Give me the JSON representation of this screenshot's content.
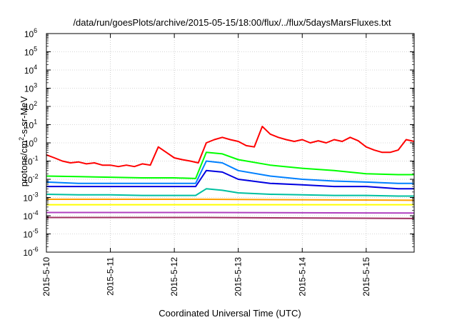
{
  "chart_data": {
    "type": "line",
    "title": "/data/run/goesPlots/archive/2015-05-15/18:00/flux/../flux/5daysMarsFluxes.txt",
    "xlabel": "Coordinated Universal Time (UTC)",
    "ylabel": "protons/cm²-s-sr-MeV",
    "ylabel_parts": [
      "protons/cm",
      "2",
      "-s-sr-MeV"
    ],
    "x_range": [
      "2015-05-10T00:00",
      "2015-05-15T18:00"
    ],
    "x_ticks": [
      "2015-5-10",
      "2015-5-11",
      "2015-5-12",
      "2015-5-13",
      "2015-5-14",
      "2015-5-15"
    ],
    "y_scale": "log",
    "y_range": [
      1e-06,
      1000000.0
    ],
    "y_ticks": [
      {
        "value": 1e-06,
        "base": "10",
        "exp": "-6"
      },
      {
        "value": 1e-05,
        "base": "10",
        "exp": "-5"
      },
      {
        "value": 0.0001,
        "base": "10",
        "exp": "-4"
      },
      {
        "value": 0.001,
        "base": "10",
        "exp": "-3"
      },
      {
        "value": 0.01,
        "base": "10",
        "exp": "-2"
      },
      {
        "value": 0.1,
        "base": "10",
        "exp": "-1"
      },
      {
        "value": 1.0,
        "base": "10",
        "exp": "0"
      },
      {
        "value": 10.0,
        "base": "10",
        "exp": "1"
      },
      {
        "value": 100.0,
        "base": "10",
        "exp": "2"
      },
      {
        "value": 1000.0,
        "base": "10",
        "exp": "3"
      },
      {
        "value": 10000.0,
        "base": "10",
        "exp": "4"
      },
      {
        "value": 100000.0,
        "base": "10",
        "exp": "5"
      },
      {
        "value": 1000000.0,
        "base": "10",
        "exp": "6"
      }
    ],
    "grid": true,
    "series": [
      {
        "color": "#ff0000",
        "x": [
          "2015-05-10T00:00",
          "2015-05-10T03:00",
          "2015-05-10T06:00",
          "2015-05-10T09:00",
          "2015-05-10T12:00",
          "2015-05-10T15:00",
          "2015-05-10T18:00",
          "2015-05-10T21:00",
          "2015-05-11T00:00",
          "2015-05-11T03:00",
          "2015-05-11T06:00",
          "2015-05-11T09:00",
          "2015-05-11T12:00",
          "2015-05-11T15:00",
          "2015-05-11T18:00",
          "2015-05-11T21:00",
          "2015-05-12T00:00",
          "2015-05-12T03:00",
          "2015-05-12T06:00",
          "2015-05-12T09:00",
          "2015-05-12T12:00",
          "2015-05-12T15:00",
          "2015-05-12T18:00",
          "2015-05-12T21:00",
          "2015-05-13T00:00",
          "2015-05-13T03:00",
          "2015-05-13T06:00",
          "2015-05-13T09:00",
          "2015-05-13T12:00",
          "2015-05-13T15:00",
          "2015-05-13T18:00",
          "2015-05-13T21:00",
          "2015-05-14T00:00",
          "2015-05-14T03:00",
          "2015-05-14T06:00",
          "2015-05-14T09:00",
          "2015-05-14T12:00",
          "2015-05-14T15:00",
          "2015-05-14T18:00",
          "2015-05-14T21:00",
          "2015-05-15T00:00",
          "2015-05-15T03:00",
          "2015-05-15T06:00",
          "2015-05-15T09:00",
          "2015-05-15T12:00",
          "2015-05-15T15:00",
          "2015-05-15T18:00"
        ],
        "y": [
          0.22,
          0.15,
          0.1,
          0.08,
          0.09,
          0.07,
          0.08,
          0.06,
          0.06,
          0.05,
          0.06,
          0.05,
          0.07,
          0.06,
          0.6,
          0.3,
          0.15,
          0.12,
          0.1,
          0.08,
          1.0,
          1.5,
          2.0,
          1.5,
          1.2,
          0.7,
          0.6,
          8.0,
          3.0,
          2.0,
          1.5,
          1.2,
          1.5,
          1.0,
          1.3,
          1.0,
          1.5,
          1.2,
          2.0,
          1.3,
          0.6,
          0.4,
          0.3,
          0.3,
          0.4,
          1.5,
          1.2
        ]
      },
      {
        "color": "#00ff00",
        "x": [
          "2015-05-10T00:00",
          "2015-05-10T12:00",
          "2015-05-11T00:00",
          "2015-05-11T12:00",
          "2015-05-12T00:00",
          "2015-05-12T08:00",
          "2015-05-12T12:00",
          "2015-05-12T18:00",
          "2015-05-13T00:00",
          "2015-05-13T12:00",
          "2015-05-14T00:00",
          "2015-05-14T12:00",
          "2015-05-15T00:00",
          "2015-05-15T12:00",
          "2015-05-15T18:00"
        ],
        "y": [
          0.015,
          0.014,
          0.013,
          0.012,
          0.012,
          0.011,
          0.3,
          0.25,
          0.12,
          0.06,
          0.04,
          0.03,
          0.02,
          0.018,
          0.018
        ]
      },
      {
        "color": "#0080ff",
        "x": [
          "2015-05-10T00:00",
          "2015-05-10T12:00",
          "2015-05-11T00:00",
          "2015-05-11T12:00",
          "2015-05-12T00:00",
          "2015-05-12T08:00",
          "2015-05-12T12:00",
          "2015-05-12T18:00",
          "2015-05-13T00:00",
          "2015-05-13T12:00",
          "2015-05-14T00:00",
          "2015-05-14T12:00",
          "2015-05-15T00:00",
          "2015-05-15T12:00",
          "2015-05-15T18:00"
        ],
        "y": [
          0.007,
          0.006,
          0.006,
          0.006,
          0.006,
          0.006,
          0.1,
          0.08,
          0.03,
          0.015,
          0.01,
          0.008,
          0.007,
          0.006,
          0.006
        ]
      },
      {
        "color": "#0000e0",
        "x": [
          "2015-05-10T00:00",
          "2015-05-10T12:00",
          "2015-05-11T00:00",
          "2015-05-11T12:00",
          "2015-05-12T00:00",
          "2015-05-12T08:00",
          "2015-05-12T12:00",
          "2015-05-12T18:00",
          "2015-05-13T00:00",
          "2015-05-13T12:00",
          "2015-05-14T00:00",
          "2015-05-14T12:00",
          "2015-05-15T00:00",
          "2015-05-15T12:00",
          "2015-05-15T18:00"
        ],
        "y": [
          0.004,
          0.004,
          0.004,
          0.004,
          0.004,
          0.004,
          0.03,
          0.025,
          0.01,
          0.006,
          0.005,
          0.004,
          0.004,
          0.003,
          0.003
        ]
      },
      {
        "color": "#00c0a0",
        "x": [
          "2015-05-10T00:00",
          "2015-05-10T12:00",
          "2015-05-11T00:00",
          "2015-05-11T12:00",
          "2015-05-12T00:00",
          "2015-05-12T08:00",
          "2015-05-12T12:00",
          "2015-05-12T18:00",
          "2015-05-13T00:00",
          "2015-05-13T12:00",
          "2015-05-14T00:00",
          "2015-05-14T12:00",
          "2015-05-15T00:00",
          "2015-05-15T12:00",
          "2015-05-15T18:00"
        ],
        "y": [
          0.0015,
          0.0014,
          0.0014,
          0.0013,
          0.0013,
          0.0013,
          0.003,
          0.0025,
          0.0018,
          0.0015,
          0.0014,
          0.0013,
          0.0013,
          0.0012,
          0.0012
        ]
      },
      {
        "color": "#ffa000",
        "x": [
          "2015-05-10T00:00",
          "2015-05-12T12:00",
          "2015-05-15T18:00"
        ],
        "y": [
          0.0008,
          0.0008,
          0.0007
        ]
      },
      {
        "color": "#ffff00",
        "x": [
          "2015-05-10T00:00",
          "2015-05-12T12:00",
          "2015-05-15T18:00"
        ],
        "y": [
          0.0004,
          0.0004,
          0.0004
        ]
      },
      {
        "color": "#b040c0",
        "x": [
          "2015-05-10T00:00",
          "2015-05-12T12:00",
          "2015-05-15T18:00"
        ],
        "y": [
          0.00015,
          0.00015,
          0.00014
        ]
      },
      {
        "color": "#a03060",
        "x": [
          "2015-05-10T00:00",
          "2015-05-12T12:00",
          "2015-05-15T18:00"
        ],
        "y": [
          8e-05,
          8e-05,
          7e-05
        ]
      }
    ]
  }
}
